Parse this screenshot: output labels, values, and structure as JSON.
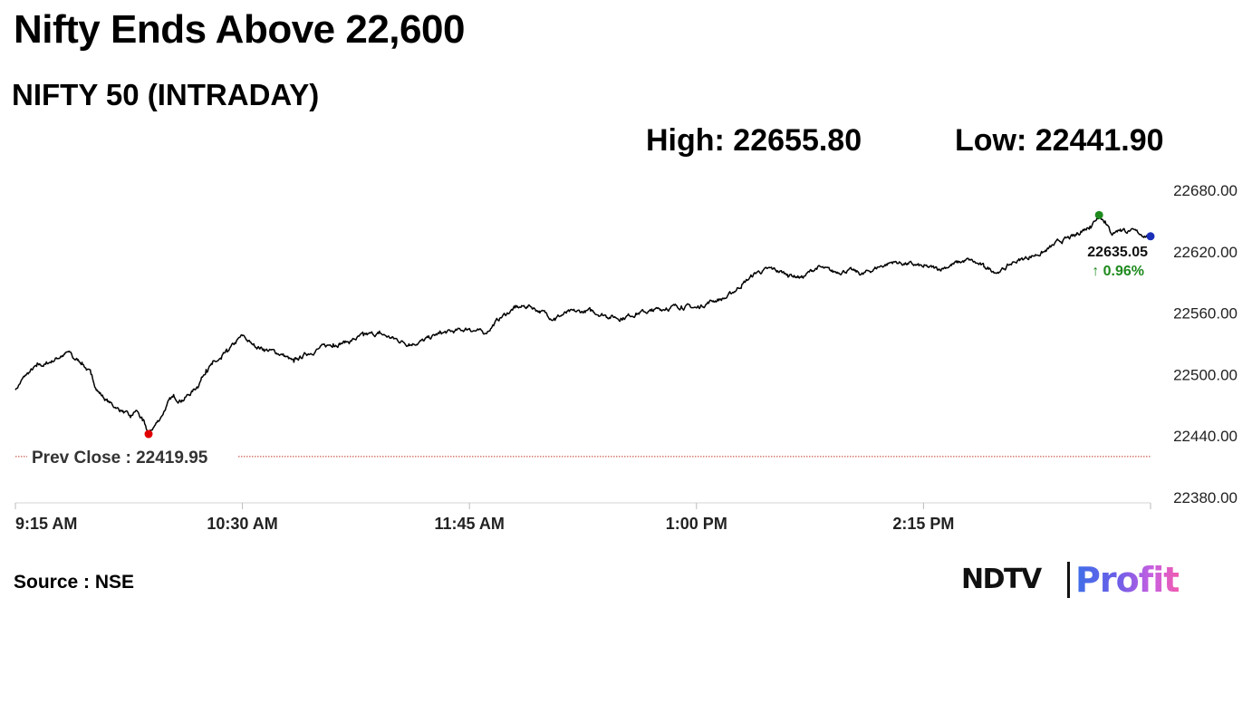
{
  "headline": "Nifty Ends Above 22,600",
  "subtitle": "NIFTY 50 (INTRADAY)",
  "stats": {
    "high": "High: 22655.80",
    "low": "Low: 22441.90"
  },
  "source": "Source : NSE",
  "logo": {
    "part1": "NDTV",
    "part2": "Profit"
  },
  "colors": {
    "line": "#000000",
    "low_marker": "#e00000",
    "high_marker": "#1e8a1e",
    "last_marker": "#1a2fb8",
    "change_up": "#1e8a1e",
    "prev_close_line": "#c0392b"
  },
  "chart_data": {
    "type": "line",
    "x_tick_labels": [
      "9:15 AM",
      "10:30 AM",
      "11:45 AM",
      "1:00 PM",
      "2:15 PM"
    ],
    "x_tick_minutes": [
      0,
      75,
      150,
      225,
      300
    ],
    "xlim_minutes": [
      0,
      375
    ],
    "y_ticks": [
      22680,
      22620,
      22560,
      22500,
      22440,
      22380
    ],
    "y_tick_labels": [
      "22680.00",
      "22620.00",
      "22560.00",
      "22500.00",
      "22440.00",
      "22380.00"
    ],
    "ylim": [
      22380,
      22680
    ],
    "prev_close": 22419.95,
    "prev_close_label": "Prev Close : 22419.95",
    "last_value_label": "22635.05",
    "change_label": "↑ 0.96%",
    "low_point": {
      "minute": 44,
      "value": 22441.9
    },
    "high_point": {
      "minute": 358,
      "value": 22655.8
    },
    "last_point": {
      "minute": 375,
      "value": 22635.05
    },
    "series": [
      {
        "x_minutes": [
          0,
          3,
          7,
          10,
          15,
          18,
          19,
          22,
          25,
          27,
          30,
          33,
          35,
          38,
          40,
          42,
          44,
          46,
          48,
          50,
          52,
          55,
          58,
          60,
          63,
          65,
          68,
          70,
          75,
          78,
          82,
          88,
          92,
          96,
          100,
          105,
          110,
          115,
          120,
          125,
          130,
          135,
          140,
          145,
          150,
          155,
          160,
          165,
          170,
          178,
          182,
          190,
          195,
          200,
          205,
          210,
          215,
          220,
          225,
          230,
          235,
          240,
          245,
          250,
          255,
          260,
          265,
          270,
          275,
          280,
          285,
          290,
          295,
          300,
          305,
          310,
          315,
          320,
          325,
          330,
          335,
          340,
          345,
          350,
          352,
          355,
          358,
          360,
          362,
          365,
          368,
          371,
          375
        ],
        "values": [
          22485,
          22498,
          22508,
          22510,
          22518,
          22522,
          22516,
          22512,
          22500,
          22485,
          22475,
          22468,
          22465,
          22458,
          22465,
          22455,
          22442,
          22450,
          22458,
          22470,
          22478,
          22475,
          22482,
          22488,
          22505,
          22510,
          22515,
          22522,
          22538,
          22530,
          22525,
          22520,
          22512,
          22520,
          22525,
          22530,
          22532,
          22538,
          22540,
          22535,
          22530,
          22533,
          22540,
          22542,
          22545,
          22540,
          22555,
          22565,
          22567,
          22555,
          22560,
          22562,
          22558,
          22555,
          22560,
          22562,
          22565,
          22567,
          22565,
          22572,
          22575,
          22588,
          22600,
          22603,
          22598,
          22595,
          22605,
          22600,
          22602,
          22598,
          22605,
          22610,
          22608,
          22605,
          22603,
          22608,
          22612,
          22605,
          22600,
          22610,
          22615,
          22620,
          22630,
          22635,
          22640,
          22645,
          22655.8,
          22650,
          22638,
          22642,
          22640,
          22638,
          22635.05
        ]
      }
    ]
  }
}
